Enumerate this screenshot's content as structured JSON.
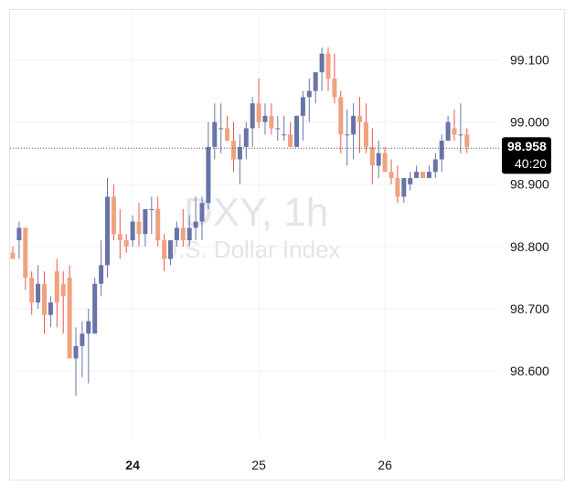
{
  "watermark": {
    "symbol": "DXY, 1h",
    "name": "U.S. Dollar Index"
  },
  "price_tag": {
    "value": "98.958",
    "countdown": "40:20"
  },
  "colors": {
    "up": "#6874a7",
    "down": "#f0a27f",
    "wick_down": "#ef5350",
    "wick_up": "#6874a7",
    "tag_bg": "#000000",
    "grid": "#f0f2f5"
  },
  "chart_data": {
    "type": "candlestick",
    "y_ticks": [
      "99.100",
      "99.000",
      "98.900",
      "98.800",
      "98.700",
      "98.600"
    ],
    "y_tick_values": [
      99.1,
      99.0,
      98.9,
      98.8,
      98.7,
      98.6
    ],
    "x_labels": [
      {
        "text": "24",
        "index": 19,
        "bold": true
      },
      {
        "text": "25",
        "index": 39,
        "bold": false
      },
      {
        "text": "26",
        "index": 59,
        "bold": false
      }
    ],
    "ylim": [
      98.49,
      99.18
    ],
    "last_price": 98.958,
    "candles": [
      [
        98.79,
        98.8,
        98.78,
        98.78
      ],
      [
        98.81,
        98.84,
        98.78,
        98.83
      ],
      [
        98.83,
        98.83,
        98.73,
        98.75
      ],
      [
        98.75,
        98.76,
        98.69,
        98.71
      ],
      [
        98.71,
        98.77,
        98.7,
        98.74
      ],
      [
        98.74,
        98.76,
        98.66,
        98.69
      ],
      [
        98.69,
        98.72,
        98.67,
        98.71
      ],
      [
        98.76,
        98.78,
        98.67,
        98.71
      ],
      [
        98.74,
        98.76,
        98.66,
        98.72
      ],
      [
        98.75,
        98.77,
        98.62,
        98.62
      ],
      [
        98.62,
        98.67,
        98.56,
        98.64
      ],
      [
        98.64,
        98.68,
        98.59,
        98.66
      ],
      [
        98.66,
        98.7,
        98.58,
        98.68
      ],
      [
        98.66,
        98.75,
        98.66,
        98.74
      ],
      [
        98.74,
        98.81,
        98.72,
        98.77
      ],
      [
        98.77,
        98.91,
        98.75,
        98.88
      ],
      [
        98.88,
        98.9,
        98.81,
        98.82
      ],
      [
        98.82,
        98.86,
        98.78,
        98.81
      ],
      [
        98.81,
        98.82,
        98.79,
        98.8
      ],
      [
        98.81,
        98.85,
        98.8,
        98.84
      ],
      [
        98.84,
        98.87,
        98.8,
        98.82
      ],
      [
        98.82,
        98.86,
        98.8,
        98.86
      ],
      [
        98.86,
        98.88,
        98.82,
        98.86
      ],
      [
        98.86,
        98.88,
        98.8,
        98.81
      ],
      [
        98.81,
        98.82,
        98.76,
        98.78
      ],
      [
        98.78,
        98.81,
        98.77,
        98.81
      ],
      [
        98.81,
        98.84,
        98.8,
        98.83
      ],
      [
        98.83,
        98.86,
        98.8,
        98.81
      ],
      [
        98.81,
        98.85,
        98.8,
        98.83
      ],
      [
        98.83,
        98.88,
        98.81,
        98.84
      ],
      [
        98.84,
        98.88,
        98.81,
        98.87
      ],
      [
        98.87,
        99.0,
        98.86,
        98.96
      ],
      [
        98.96,
        99.03,
        98.94,
        99.0
      ],
      [
        98.99,
        99.03,
        98.95,
        98.99
      ],
      [
        98.99,
        99.01,
        98.97,
        98.97
      ],
      [
        98.97,
        99.0,
        98.92,
        98.94
      ],
      [
        98.94,
        98.98,
        98.9,
        98.96
      ],
      [
        98.96,
        99.0,
        98.94,
        98.99
      ],
      [
        98.99,
        99.04,
        98.96,
        99.03
      ],
      [
        99.03,
        99.07,
        98.99,
        99.0
      ],
      [
        99.0,
        99.03,
        98.98,
        99.01
      ],
      [
        99.01,
        99.03,
        98.98,
        98.99
      ],
      [
        98.99,
        99.01,
        98.97,
        98.99
      ],
      [
        98.98,
        99.01,
        98.97,
        98.98
      ],
      [
        98.98,
        99.0,
        98.96,
        98.96
      ],
      [
        98.96,
        99.01,
        98.96,
        99.01
      ],
      [
        99.01,
        99.05,
        98.97,
        99.04
      ],
      [
        99.04,
        99.07,
        99.0,
        99.05
      ],
      [
        99.05,
        99.08,
        99.03,
        99.08
      ],
      [
        99.08,
        99.12,
        99.05,
        99.11
      ],
      [
        99.11,
        99.12,
        99.05,
        99.07
      ],
      [
        99.07,
        99.11,
        99.03,
        99.04
      ],
      [
        99.04,
        99.05,
        98.95,
        98.98
      ],
      [
        98.98,
        99.02,
        98.93,
        98.98
      ],
      [
        98.98,
        99.03,
        98.94,
        99.01
      ],
      [
        99.01,
        99.04,
        98.95,
        99.0
      ],
      [
        99.0,
        99.03,
        98.95,
        98.96
      ],
      [
        98.96,
        98.99,
        98.9,
        98.93
      ],
      [
        98.93,
        98.97,
        98.91,
        98.95
      ],
      [
        98.95,
        98.96,
        98.92,
        98.92
      ],
      [
        98.92,
        98.94,
        98.9,
        98.91
      ],
      [
        98.91,
        98.93,
        98.87,
        98.88
      ],
      [
        98.88,
        98.91,
        98.87,
        98.91
      ],
      [
        98.9,
        98.92,
        98.89,
        98.91
      ],
      [
        98.91,
        98.93,
        98.91,
        98.92
      ],
      [
        98.92,
        98.92,
        98.91,
        98.91
      ],
      [
        98.91,
        98.93,
        98.91,
        98.92
      ],
      [
        98.92,
        98.95,
        98.91,
        98.94
      ],
      [
        98.94,
        98.98,
        98.92,
        98.97
      ],
      [
        98.97,
        99.01,
        98.97,
        99.0
      ],
      [
        98.99,
        99.02,
        98.97,
        98.98
      ],
      [
        98.98,
        99.03,
        98.95,
        98.98
      ],
      [
        98.98,
        98.99,
        98.95,
        98.96
      ]
    ]
  }
}
